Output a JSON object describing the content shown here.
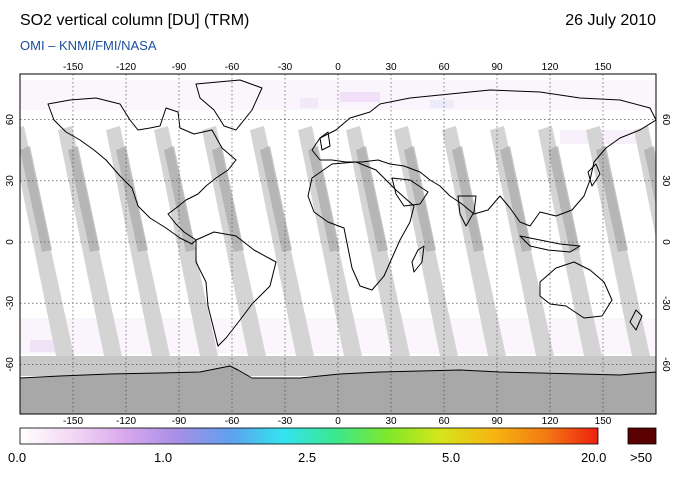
{
  "header": {
    "title": "SO2 vertical column [DU] (TRM)",
    "date": "26 July 2010",
    "source": "OMI  –  KNMI/FMI/NASA"
  },
  "map": {
    "lon_ticks": [
      "-150",
      "-120",
      "-90",
      "-60",
      "-30",
      "0",
      "30",
      "60",
      "90",
      "120",
      "150"
    ],
    "lat_ticks": [
      "60",
      "30",
      "0",
      "-30",
      "-60"
    ],
    "colors": {
      "ocean": "#ffffff",
      "orbit_gap": "#d4d4d4",
      "orbit_overlap": "#a9a9a9",
      "polar_night": "#c8c8c8",
      "antarctica": "#a8a8a8",
      "coast": "#000000"
    }
  },
  "colorbar": {
    "labels": [
      "0.0",
      "1.0",
      "2.5",
      "5.0",
      "20.0",
      ">50"
    ],
    "stops": [
      "#ffffff",
      "#f3d8f3",
      "#d9a8ee",
      "#a78ee6",
      "#5fa0ee",
      "#33e3f0",
      "#3ae88f",
      "#7ee82a",
      "#d6e51a",
      "#f6b612",
      "#f47a12",
      "#ee2010"
    ],
    "overflow_color": "#5a0000"
  }
}
